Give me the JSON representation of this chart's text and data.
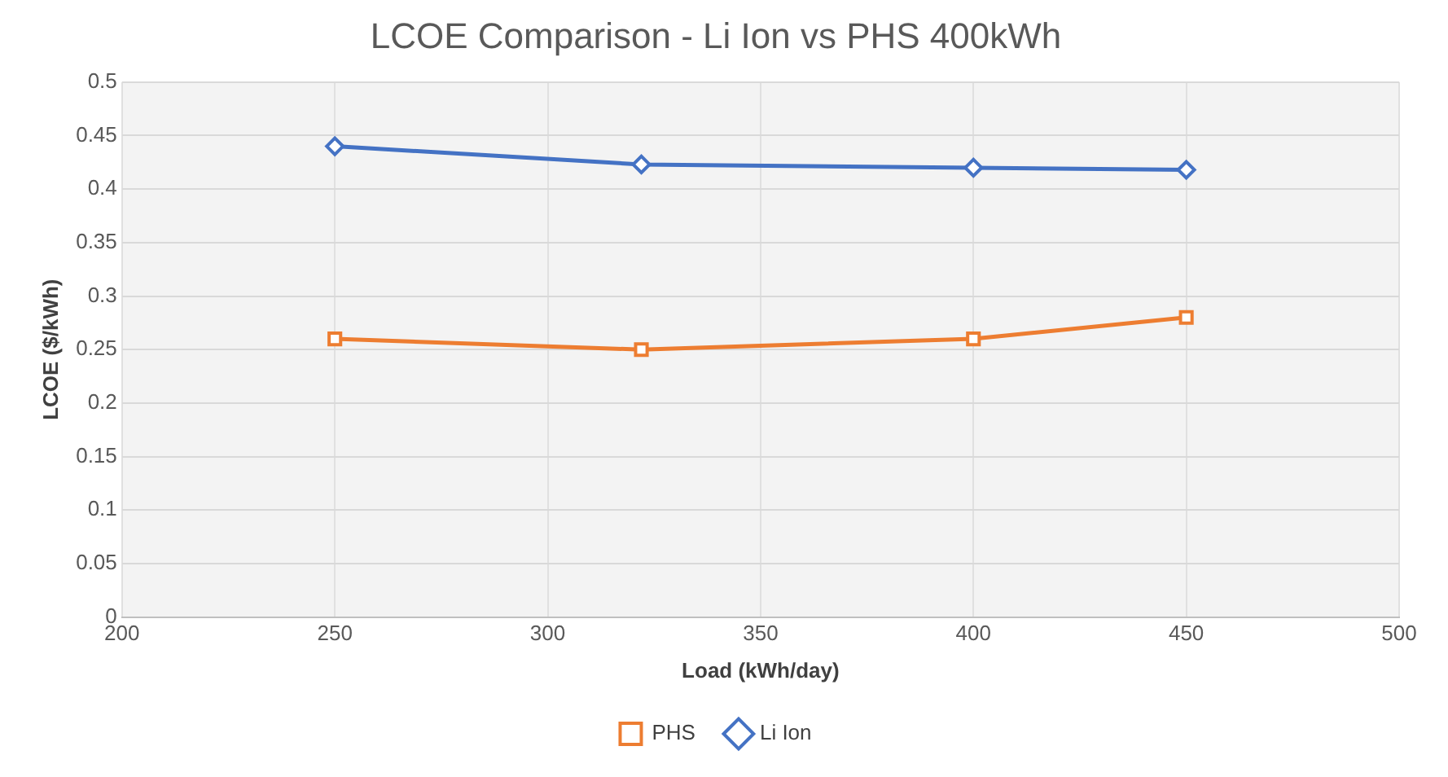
{
  "chart_data": {
    "type": "line",
    "title": "LCOE Comparison - Li Ion vs PHS 400kWh",
    "xlabel": "Load (kWh/day)",
    "ylabel": "LCOE ($/kWh)",
    "x": [
      250,
      322,
      400,
      450
    ],
    "series": [
      {
        "name": "PHS",
        "color": "#ed7d31",
        "marker": "square",
        "values": [
          0.26,
          0.25,
          0.26,
          0.28
        ]
      },
      {
        "name": "Li Ion",
        "color": "#4472c4",
        "marker": "diamond",
        "values": [
          0.44,
          0.423,
          0.42,
          0.418
        ]
      }
    ],
    "xlim": [
      200,
      500
    ],
    "xticks": [
      200,
      250,
      300,
      350,
      400,
      450,
      500
    ],
    "ylim": [
      0,
      0.5
    ],
    "yticks": [
      0,
      0.05,
      0.1,
      0.15,
      0.2,
      0.25,
      0.3,
      0.35,
      0.4,
      0.45,
      0.5
    ],
    "grid": true,
    "legend": "bottom",
    "line_style": "solid"
  }
}
